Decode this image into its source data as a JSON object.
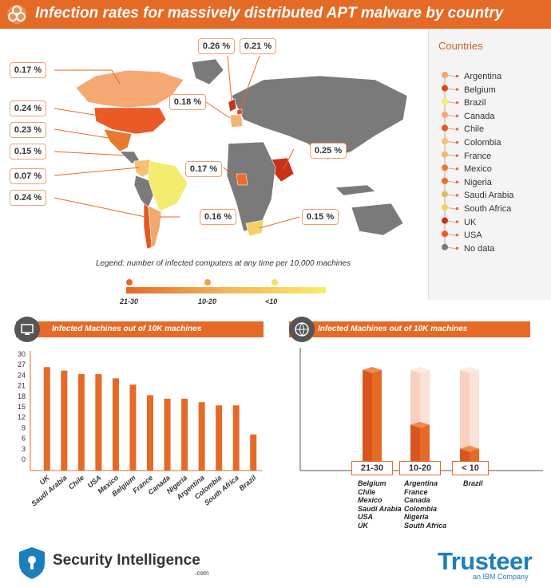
{
  "header": {
    "title": "Infection rates for massively distributed APT malware by country"
  },
  "legend": {
    "title": "Countries",
    "items": [
      {
        "label": "Argentina",
        "color": "#f2a86a"
      },
      {
        "label": "Belgium",
        "color": "#e0431c"
      },
      {
        "label": "Brazil",
        "color": "#f3ec6e"
      },
      {
        "label": "Canada",
        "color": "#f6a872"
      },
      {
        "label": "Chile",
        "color": "#e55a24"
      },
      {
        "label": "Colombia",
        "color": "#f5c274"
      },
      {
        "label": "France",
        "color": "#f4b66e"
      },
      {
        "label": "Mexico",
        "color": "#e87a30"
      },
      {
        "label": "Nigeria",
        "color": "#ec6a2c"
      },
      {
        "label": "Saudi Arabia",
        "color": "#d7c060"
      },
      {
        "label": "South Africa",
        "color": "#f0d364"
      },
      {
        "label": "UK",
        "color": "#c8321a"
      },
      {
        "label": "USA",
        "color": "#ea5a26"
      },
      {
        "label": "No data",
        "color": "#7a7a7a"
      }
    ]
  },
  "map_callouts": [
    {
      "id": "usa-north",
      "text": "0.17 %"
    },
    {
      "id": "usa",
      "text": "0.24 %"
    },
    {
      "id": "mexico",
      "text": "0.23 %"
    },
    {
      "id": "central",
      "text": "0.15 %"
    },
    {
      "id": "colombia",
      "text": "0.07 %"
    },
    {
      "id": "chile",
      "text": "0.24 %"
    },
    {
      "id": "argentina",
      "text": "0.16 %"
    },
    {
      "id": "uk",
      "text": "0.26 %"
    },
    {
      "id": "belgium",
      "text": "0.21 %"
    },
    {
      "id": "france",
      "text": "0.18 %"
    },
    {
      "id": "nigeria",
      "text": "0.17 %"
    },
    {
      "id": "saudi",
      "text": "0.25 %"
    },
    {
      "id": "south-africa",
      "text": "0.15 %"
    }
  ],
  "scale": {
    "caption": "Legend: number of infected computers at any time per 10,000 machines",
    "labels": [
      "21-30",
      "10-20",
      "<10"
    ]
  },
  "chart_data": [
    {
      "type": "bar",
      "title": "Infected Machines out of 10K machines",
      "categories": [
        "UK",
        "Saudi Arabia",
        "Chile",
        "USA",
        "Mexico",
        "Belgium",
        "France",
        "Canada",
        "Nigeria",
        "Argentina",
        "Colombia",
        "South Africa",
        "Brazil"
      ],
      "values": [
        26.3,
        25.3,
        24.3,
        24.3,
        23.1,
        21.3,
        18.3,
        17.3,
        17.3,
        16.3,
        15.4,
        15.4,
        7.1
      ],
      "yticks": [
        0,
        3,
        6,
        9,
        12,
        15,
        18,
        21,
        24,
        27,
        30
      ],
      "ylim": [
        0,
        30
      ],
      "color": "#e56a26"
    },
    {
      "type": "bar",
      "title": "Infected Machines out of 10K machines",
      "categories": [
        "21-30",
        "10-20",
        "< 10"
      ],
      "fill": [
        1.0,
        0.45,
        0.21
      ],
      "groups": [
        [
          "Belgium",
          "Chile",
          "Mexico",
          "Saudi Arabia",
          "USA",
          "UK"
        ],
        [
          "Argentina",
          "France",
          "Canada",
          "Colombia",
          "Nigeria",
          "South Africa"
        ],
        [
          "Brazil"
        ]
      ],
      "color": "#e56a26"
    }
  ],
  "footer": {
    "brand": "Security Intelligence",
    "brand_suffix": ".com",
    "partner": "Trusteer",
    "partner_sub": "an IBM Company"
  }
}
